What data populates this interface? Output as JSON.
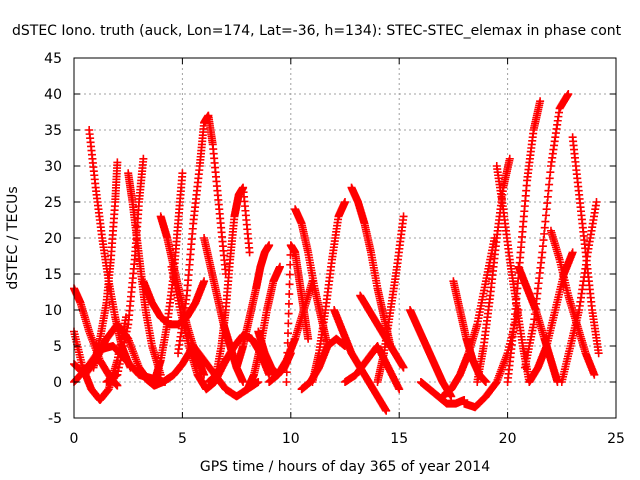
{
  "chart_data": {
    "type": "scatter",
    "title": "dSTEC Iono. truth (auck, Lon=174, Lat=-36, h=134): STEC-STEC_elemax in phase cont",
    "xlabel": "GPS time / hours of day 365 of year 2014",
    "ylabel": "dSTEC  / TECUs",
    "xlim": [
      0,
      25
    ],
    "ylim": [
      -5,
      45
    ],
    "xticks": [
      0,
      5,
      10,
      15,
      20,
      25
    ],
    "yticks": [
      -5,
      0,
      5,
      10,
      15,
      20,
      25,
      30,
      35,
      40,
      45
    ],
    "grid": true,
    "legend": "none",
    "marker": "+",
    "color": "#ff0000",
    "series": [
      {
        "x": [
          0.0,
          0.3,
          0.7,
          1.2,
          1.7,
          2.0
        ],
        "y": [
          13,
          11,
          7,
          3,
          0.5,
          -0.5
        ]
      },
      {
        "x": [
          0.0,
          0.4,
          0.8,
          1.2,
          1.6,
          2.0,
          2.4
        ],
        "y": [
          7,
          2,
          -1,
          -2.5,
          -1,
          3,
          9
        ]
      },
      {
        "x": [
          0.0,
          0.5,
          1.0,
          1.5,
          2.0,
          2.5,
          3.0,
          3.5
        ],
        "y": [
          2.5,
          1,
          3,
          6,
          8,
          6,
          2,
          0
        ]
      },
      {
        "x": [
          0.0,
          0.6,
          1.2,
          1.8,
          2.4,
          3.0,
          3.6,
          4.2
        ],
        "y": [
          0,
          2,
          4.5,
          5,
          3,
          1,
          0.5,
          0
        ]
      },
      {
        "x": [
          0.7,
          1.0,
          1.3,
          1.6,
          1.9,
          2.2,
          2.6
        ],
        "y": [
          35,
          27,
          20,
          14,
          9,
          5,
          2
        ]
      },
      {
        "x": [
          0.9,
          1.2,
          1.5,
          1.7,
          1.9,
          2.0
        ],
        "y": [
          2,
          6,
          11,
          17,
          25,
          30.5
        ]
      },
      {
        "x": [
          1.5,
          2.0,
          2.5,
          2.8,
          3.0,
          3.2
        ],
        "y": [
          0,
          1,
          8,
          17,
          25,
          31
        ]
      },
      {
        "x": [
          2.5,
          2.7,
          2.9,
          3.1,
          3.3,
          3.6,
          4.0
        ],
        "y": [
          29,
          25,
          20,
          15,
          10,
          5,
          1
        ]
      },
      {
        "x": [
          3.0,
          3.3,
          3.7,
          4.1,
          4.6,
          5.0,
          5.5
        ],
        "y": [
          2,
          0.5,
          -0.5,
          0,
          1,
          2.5,
          5
        ]
      },
      {
        "x": [
          3.2,
          3.6,
          4.0,
          4.4,
          4.8,
          5.2,
          5.6,
          6.0
        ],
        "y": [
          14,
          11,
          9,
          8,
          8,
          9,
          11,
          14
        ]
      },
      {
        "x": [
          4.0,
          4.3,
          4.6,
          4.9,
          5.2,
          5.6,
          6.0
        ],
        "y": [
          23,
          20,
          16,
          12,
          8,
          4,
          1
        ]
      },
      {
        "x": [
          3.7,
          4.0,
          4.3,
          4.6,
          4.8,
          5.0
        ],
        "y": [
          0,
          3,
          8,
          15,
          22,
          29
        ]
      },
      {
        "x": [
          4.5,
          4.9,
          5.3,
          5.7,
          6.1,
          6.5,
          7.0
        ],
        "y": [
          16,
          10,
          5,
          1,
          -1,
          0,
          3
        ]
      },
      {
        "x": [
          4.8,
          5.2,
          5.5,
          5.8,
          6.0,
          6.2,
          6.4,
          6.7,
          7.0
        ],
        "y": [
          4,
          12,
          22,
          30,
          36,
          37,
          33,
          24,
          15
        ]
      },
      {
        "x": [
          5.5,
          6.0,
          6.5,
          7.0,
          7.5,
          8.0,
          8.5
        ],
        "y": [
          5,
          3,
          1,
          -1,
          -2,
          -1,
          0
        ]
      },
      {
        "x": [
          6.0,
          6.3,
          6.6,
          6.9,
          7.2,
          7.5,
          7.8
        ],
        "y": [
          20,
          16,
          12,
          8,
          5,
          2,
          0
        ]
      },
      {
        "x": [
          6.5,
          6.8,
          7.0,
          7.2,
          7.4,
          7.6,
          7.8,
          8.1
        ],
        "y": [
          0,
          5,
          10,
          17,
          23,
          26,
          27,
          18
        ]
      },
      {
        "x": [
          6.2,
          6.6,
          7.0,
          7.4,
          7.8,
          8.2,
          8.6,
          9.0
        ],
        "y": [
          0,
          1,
          3,
          5,
          6.5,
          6,
          4,
          1
        ]
      },
      {
        "x": [
          7.5,
          7.8,
          8.1,
          8.4,
          8.6,
          8.8,
          9.0
        ],
        "y": [
          2,
          5,
          9,
          13,
          16,
          18,
          19
        ]
      },
      {
        "x": [
          8.0,
          8.3,
          8.6,
          8.9,
          9.2,
          9.5
        ],
        "y": [
          -1,
          1,
          5,
          10,
          14,
          16
        ]
      },
      {
        "x": [
          8.5,
          8.8,
          9.1,
          9.4,
          9.7,
          10.0
        ],
        "y": [
          7,
          4,
          2,
          1,
          2,
          4
        ]
      },
      {
        "x": [
          9.0,
          9.4,
          9.8,
          10.2,
          10.6,
          11.0
        ],
        "y": [
          0,
          1,
          3,
          6,
          10,
          14
        ]
      },
      {
        "x": [
          9.8,
          10.0,
          10.2,
          10.4,
          10.6,
          10.8
        ],
        "y": [
          0,
          19,
          18,
          14,
          10,
          6
        ]
      },
      {
        "x": [
          10.2,
          10.5,
          10.8,
          11.1,
          11.4,
          11.7
        ],
        "y": [
          24,
          22,
          18,
          13,
          9,
          5
        ]
      },
      {
        "x": [
          10.5,
          10.9,
          11.3,
          11.7,
          12.1,
          12.5
        ],
        "y": [
          -1,
          0,
          2,
          5,
          6,
          5
        ]
      },
      {
        "x": [
          11.0,
          11.3,
          11.6,
          11.9,
          12.2,
          12.5
        ],
        "y": [
          0,
          4,
          10,
          17,
          23,
          25
        ]
      },
      {
        "x": [
          12.0,
          12.4,
          12.8,
          13.2,
          13.6,
          14.0,
          14.4
        ],
        "y": [
          10,
          7,
          4,
          2,
          0,
          -2,
          -4
        ]
      },
      {
        "x": [
          12.8,
          13.1,
          13.4,
          13.7,
          14.0,
          14.3,
          14.6
        ],
        "y": [
          27,
          25,
          22,
          18,
          13,
          9,
          5
        ]
      },
      {
        "x": [
          12.5,
          13.0,
          13.5,
          14.0,
          14.5,
          15.0
        ],
        "y": [
          0,
          1,
          3,
          5,
          2,
          -1
        ]
      },
      {
        "x": [
          13.2,
          13.6,
          14.0,
          14.4,
          14.8,
          15.2
        ],
        "y": [
          12,
          10,
          8,
          6,
          4,
          2
        ]
      },
      {
        "x": [
          14.0,
          14.3,
          14.6,
          14.9,
          15.2
        ],
        "y": [
          0,
          4,
          10,
          16,
          23
        ]
      },
      {
        "x": [
          15.5,
          15.8,
          16.1,
          16.4,
          16.7,
          17.0,
          17.4
        ],
        "y": [
          10,
          8,
          6,
          4,
          2,
          0,
          -2
        ]
      },
      {
        "x": [
          16.0,
          16.4,
          16.8,
          17.2,
          17.6,
          18.0
        ],
        "y": [
          0,
          -1,
          -2,
          -3,
          -3,
          -2.5
        ]
      },
      {
        "x": [
          17.5,
          17.8,
          18.1,
          18.4,
          18.7,
          19.0
        ],
        "y": [
          14,
          10,
          6,
          3,
          1,
          0
        ]
      },
      {
        "x": [
          17.0,
          17.4,
          17.8,
          18.2,
          18.6,
          19.0,
          19.4
        ],
        "y": [
          -2,
          -1,
          1,
          4,
          8,
          14,
          20
        ]
      },
      {
        "x": [
          18.0,
          18.5,
          19.0,
          19.5,
          20.0,
          20.5
        ],
        "y": [
          -3,
          -3.5,
          -2,
          0,
          4,
          10
        ]
      },
      {
        "x": [
          18.6,
          18.9,
          19.2,
          19.5,
          19.8,
          20.1
        ],
        "y": [
          0,
          5,
          12,
          20,
          27,
          31
        ]
      },
      {
        "x": [
          19.5,
          19.8,
          20.1,
          20.4,
          20.7,
          21.0
        ],
        "y": [
          30,
          24,
          17,
          11,
          5,
          0
        ]
      },
      {
        "x": [
          20.0,
          20.3,
          20.6,
          20.9,
          21.2,
          21.5
        ],
        "y": [
          0,
          8,
          18,
          28,
          35,
          39
        ]
      },
      {
        "x": [
          20.5,
          20.9,
          21.3,
          21.7,
          22.0,
          22.3
        ],
        "y": [
          16,
          13,
          10,
          6,
          3,
          0
        ]
      },
      {
        "x": [
          20.8,
          21.2,
          21.6,
          22.0,
          22.4,
          22.8
        ],
        "y": [
          2,
          8,
          18,
          30,
          38,
          40
        ]
      },
      {
        "x": [
          21.0,
          21.4,
          21.8,
          22.2,
          22.6,
          23.0
        ],
        "y": [
          0,
          2,
          5,
          10,
          15,
          18
        ]
      },
      {
        "x": [
          22.0,
          22.4,
          22.8,
          23.2,
          23.6,
          24.0
        ],
        "y": [
          21,
          17,
          12,
          8,
          4,
          1
        ]
      },
      {
        "x": [
          22.5,
          22.9,
          23.3,
          23.7,
          24.1
        ],
        "y": [
          0,
          5,
          10,
          18,
          25
        ]
      },
      {
        "x": [
          23.0,
          23.3,
          23.6,
          23.9,
          24.2
        ],
        "y": [
          34,
          26,
          18,
          10,
          4
        ]
      }
    ]
  }
}
